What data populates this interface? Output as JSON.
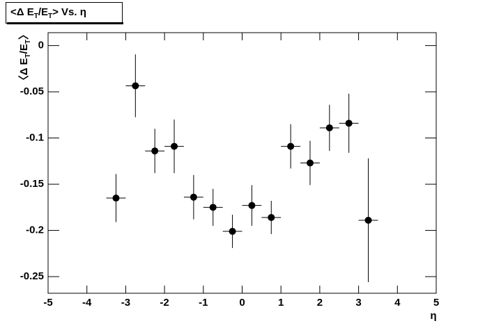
{
  "chart_data": {
    "type": "scatter",
    "title": [
      "<Δ E",
      "T",
      "/E",
      "T",
      "> Vs. η"
    ],
    "y_label": [
      "〈Δ E",
      "T",
      "/E",
      "T",
      "〉"
    ],
    "x_label": "η",
    "x": [
      -3.25,
      -2.75,
      -2.25,
      -1.75,
      -1.25,
      -0.75,
      -0.25,
      0.25,
      0.75,
      1.25,
      1.75,
      2.25,
      2.75,
      3.25
    ],
    "xerr": [
      0.25,
      0.25,
      0.25,
      0.25,
      0.25,
      0.25,
      0.25,
      0.25,
      0.25,
      0.25,
      0.25,
      0.25,
      0.25,
      0.25
    ],
    "values": [
      -0.165,
      -0.0435,
      -0.114,
      -0.109,
      -0.164,
      -0.175,
      -0.201,
      -0.173,
      -0.186,
      -0.109,
      -0.127,
      -0.089,
      -0.084,
      -0.189
    ],
    "errors": [
      0.026,
      0.034,
      0.024,
      0.029,
      0.024,
      0.02,
      0.018,
      0.022,
      0.018,
      0.024,
      0.024,
      0.025,
      0.032,
      0.067
    ],
    "color": "#000000",
    "xlim": [
      -5,
      5
    ],
    "xticks": [
      -5,
      -4,
      -3,
      -2,
      -1,
      0,
      1,
      2,
      3,
      4,
      5
    ],
    "ylim": [
      -0.268,
      0.014
    ],
    "yticks": [
      -0.25,
      -0.2,
      -0.15,
      -0.1,
      -0.05,
      0
    ]
  }
}
